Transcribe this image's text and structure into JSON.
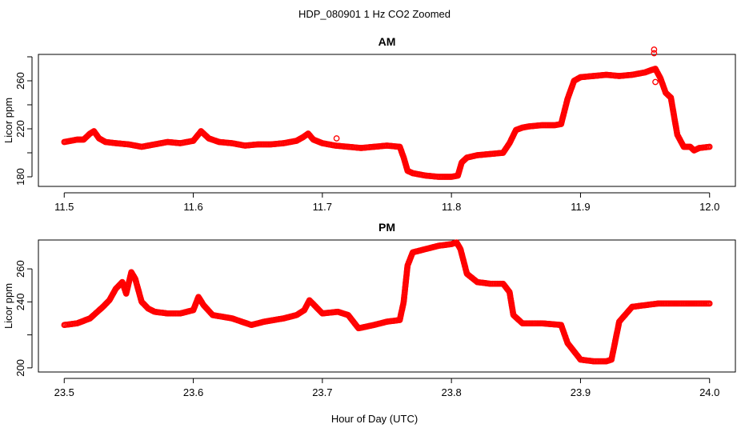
{
  "figure": {
    "title": "HDP_080901  1 Hz CO2 Zoomed",
    "xlabel": "Hour of Day (UTC)"
  },
  "chart_data": [
    {
      "type": "scatter",
      "title": "AM",
      "xlabel": "",
      "ylabel": "Licor ppm",
      "xlim": [
        11.48,
        12.02
      ],
      "ylim": [
        172,
        282
      ],
      "xticks": [
        11.5,
        11.6,
        11.7,
        11.8,
        11.9,
        12.0
      ],
      "xtick_labels": [
        "11.5",
        "11.6",
        "11.7",
        "11.8",
        "11.9",
        "12.0"
      ],
      "yticks": [
        180,
        220,
        260
      ],
      "ytick_labels": [
        "180",
        "220",
        "260"
      ],
      "y_minor_ticks": [
        180,
        200,
        220,
        240,
        260,
        280
      ],
      "marker_color": "#ff0000",
      "grid": false,
      "series": [
        {
          "x": [
            11.5,
            11.505,
            11.51,
            11.515,
            11.52,
            11.523,
            11.527,
            11.532,
            11.54,
            11.55,
            11.56,
            11.57,
            11.58,
            11.59,
            11.6,
            11.606,
            11.612,
            11.62,
            11.63,
            11.64,
            11.65,
            11.66,
            11.67,
            11.68,
            11.685,
            11.689,
            11.693,
            11.7,
            11.71,
            11.72,
            11.73,
            11.74,
            11.75,
            11.76,
            11.763,
            11.766,
            11.77,
            11.78,
            11.79,
            11.8,
            11.805,
            11.808,
            11.812,
            11.82,
            11.83,
            11.84,
            11.845,
            11.85,
            11.855,
            11.86,
            11.87,
            11.88,
            11.885,
            11.89,
            11.895,
            11.9,
            11.91,
            11.92,
            11.93,
            11.94,
            11.95,
            11.955,
            11.958,
            11.962,
            11.966,
            11.97,
            11.975,
            11.98,
            11.985,
            11.988,
            11.992,
            12.0
          ],
          "y": [
            209,
            210,
            211,
            211,
            216,
            218,
            212,
            209,
            208,
            207,
            205,
            207,
            209,
            208,
            210,
            218,
            212,
            209,
            208,
            206,
            207,
            207,
            208,
            210,
            213,
            216,
            211,
            208,
            206,
            205,
            204,
            205,
            206,
            205,
            196,
            185,
            183,
            181,
            180,
            180,
            181,
            192,
            196,
            198,
            199,
            200,
            208,
            219,
            221,
            222,
            223,
            223,
            224,
            245,
            260,
            263,
            264,
            265,
            264,
            265,
            267,
            269,
            270,
            262,
            250,
            246,
            215,
            205,
            205,
            202,
            204,
            205
          ]
        },
        {
          "x": [
            11.711,
            11.957,
            11.957,
            11.958
          ],
          "y": [
            212,
            286,
            283,
            259
          ]
        }
      ]
    },
    {
      "type": "scatter",
      "title": "PM",
      "xlabel": "",
      "ylabel": "Licor ppm",
      "xlim": [
        23.48,
        24.02
      ],
      "ylim": [
        197.5,
        277.5
      ],
      "xticks": [
        23.5,
        23.6,
        23.7,
        23.8,
        23.9,
        24.0
      ],
      "xtick_labels": [
        "23.5",
        "23.6",
        "23.7",
        "23.8",
        "23.9",
        "24.0"
      ],
      "yticks": [
        200,
        240,
        260
      ],
      "ytick_labels": [
        "200",
        "240",
        "260"
      ],
      "y_minor_ticks": [
        200,
        220,
        240,
        260
      ],
      "marker_color": "#ff0000",
      "grid": false,
      "series": [
        {
          "x": [
            23.5,
            23.51,
            23.52,
            23.53,
            23.535,
            23.54,
            23.545,
            23.548,
            23.552,
            23.555,
            23.56,
            23.565,
            23.57,
            23.58,
            23.59,
            23.6,
            23.604,
            23.608,
            23.615,
            23.63,
            23.645,
            23.655,
            23.67,
            23.68,
            23.686,
            23.69,
            23.7,
            23.712,
            23.72,
            23.728,
            23.74,
            23.75,
            23.76,
            23.763,
            23.766,
            23.77,
            23.78,
            23.79,
            23.8,
            23.804,
            23.807,
            23.812,
            23.82,
            23.83,
            23.84,
            23.845,
            23.848,
            23.855,
            23.87,
            23.885,
            23.89,
            23.9,
            23.91,
            23.92,
            23.924,
            23.93,
            23.94,
            23.95,
            23.96,
            23.97,
            24.0
          ],
          "y": [
            226,
            227,
            230,
            237,
            241,
            248,
            252,
            245,
            258,
            254,
            240,
            236,
            234,
            233,
            233,
            235,
            243,
            238,
            232,
            230,
            226,
            228,
            230,
            232,
            235,
            241,
            233,
            234,
            232,
            224,
            226,
            228,
            229,
            240,
            262,
            270,
            272,
            274,
            275,
            276,
            272,
            257,
            252,
            251,
            251,
            246,
            232,
            227,
            227,
            226,
            215,
            205,
            204,
            204,
            205,
            228,
            237,
            238,
            239,
            239,
            239
          ]
        }
      ]
    }
  ]
}
